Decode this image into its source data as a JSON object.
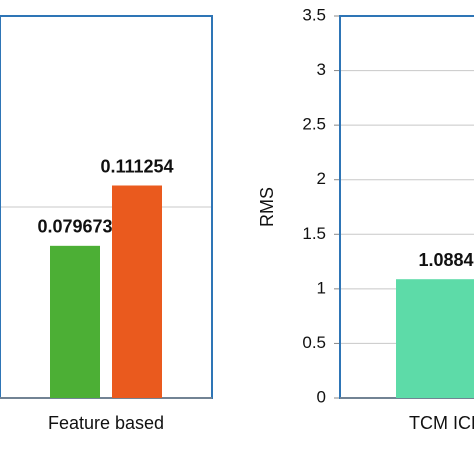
{
  "chart_data": [
    {
      "type": "bar",
      "categories": [
        "Feature based"
      ],
      "series": [
        {
          "color": "#4caf35",
          "values": [
            0.079673
          ]
        },
        {
          "color": "#ea5a1e",
          "values": [
            0.111254
          ]
        }
      ],
      "ylim": [
        0,
        0.2
      ],
      "yticks": [
        0,
        0.1,
        0.2
      ],
      "grid": true
    },
    {
      "type": "bar",
      "ylabel": "RMS",
      "categories": [
        "TCM ICP"
      ],
      "series": [
        {
          "color": "#5ddba8",
          "values": [
            1.0884
          ]
        }
      ],
      "ylim": [
        0,
        3.5
      ],
      "yticks": [
        0,
        0.5,
        1,
        1.5,
        2,
        2.5,
        3,
        3.5
      ],
      "grid": true
    }
  ]
}
